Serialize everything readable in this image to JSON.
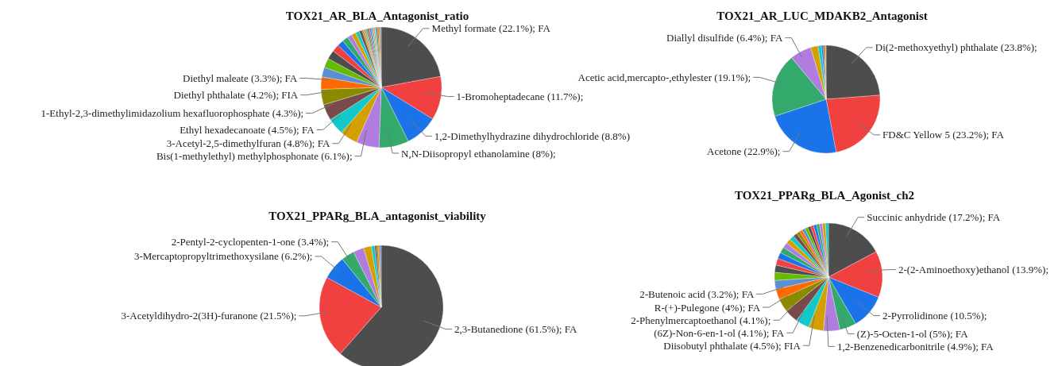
{
  "chart_data": [
    {
      "type": "pie",
      "title": "TOX21_AR_BLA_Antagonist_ratio",
      "categories": [
        "Methyl formate",
        "1-Bromoheptadecane",
        "1,2-Dimethylhydrazine dihydrochloride",
        "N,N-Diisopropyl ethanolamine",
        "Bis(1-methylethyl) methylphosphonate",
        "3-Acetyl-2,5-dimethylfuran",
        "Ethyl hexadecanoate",
        "1-Ethyl-2,3-dimethylimidazolium hexafluorophosphate",
        "Diethyl phthalate",
        "Diethyl maleate",
        null,
        null,
        null,
        null,
        null,
        null,
        null,
        null,
        null,
        null,
        null,
        null,
        null,
        null,
        null,
        null,
        null,
        null,
        null,
        null,
        null,
        null,
        null,
        null,
        null
      ],
      "values": [
        22.1,
        11.7,
        8.8,
        8,
        6.1,
        4.8,
        4.5,
        4.3,
        4.2,
        3.3,
        2.6,
        2.5,
        2.4,
        2,
        1.7,
        1.6,
        1.2,
        1.2,
        1,
        0.8,
        0.35,
        0.35,
        0.35,
        0.35,
        0.35,
        0.35,
        0.35,
        0.35,
        0.35,
        0.35,
        0.35,
        0.35,
        0.35,
        0.35,
        0.3
      ],
      "value_labels": [
        "(22.1%); FA",
        "(11.7%);",
        "(8.8%)",
        "(8%);",
        "(6.1%);",
        "(4.8%); FA",
        "(4.5%); FA",
        "(4.3%);",
        "(4.2%); FIA",
        "(3.3%); FA",
        null,
        null,
        null,
        null,
        null,
        null,
        null,
        null,
        null,
        null,
        null,
        null,
        null,
        null,
        null,
        null,
        null,
        null,
        null,
        null,
        null,
        null,
        null,
        null,
        null
      ],
      "colors": [
        "#4d4d4d",
        "#f04040",
        "#1a73e8",
        "#33a96b",
        "#b07ce0",
        "#d4a000",
        "#12c8c8",
        "#7a4a4a",
        "#8a8a00",
        "#ff6a00",
        "#5b8fd4",
        "#66bb00",
        "#4d4d4d",
        "#f04040",
        "#1a73e8",
        "#33a96b",
        "#b07ce0",
        "#d4a000",
        "#12c8c8",
        "#7a4a4a",
        "#8a8a00",
        "#ff6a00",
        "#5b8fd4",
        "#66bb00",
        "#4d4d4d",
        "#f04040",
        "#1a73e8",
        "#33a96b",
        "#b07ce0",
        "#d4a000",
        "#12c8c8",
        "#7a4a4a",
        "#8a8a00",
        "#ff6a00",
        "#5b8fd4"
      ]
    },
    {
      "type": "pie",
      "title": "TOX21_AR_LUC_MDAKB2_Antagonist",
      "categories": [
        "Di(2-methoxyethyl) phthalate",
        "FD&C Yellow 5",
        "Acetone",
        "Acetic acid,mercapto-,ethylester",
        "Diallyl disulfide",
        null,
        null,
        null,
        null,
        null,
        null
      ],
      "values": [
        23.8,
        23.2,
        22.9,
        19.1,
        6.4,
        2.2,
        1,
        0.5,
        0.4,
        0.3,
        0.2
      ],
      "value_labels": [
        "(23.8%);",
        "(23.2%); FA",
        "(22.9%);",
        "(19.1%);",
        "(6.4%); FA",
        null,
        null,
        null,
        null,
        null,
        null
      ],
      "colors": [
        "#4d4d4d",
        "#f04040",
        "#1a73e8",
        "#33a96b",
        "#b07ce0",
        "#d4a000",
        "#12c8c8",
        "#1a73e8",
        "#7a4a4a",
        "#8a8a00",
        "#ff6a00"
      ]
    },
    {
      "type": "pie",
      "title": "TOX21_PPARg_BLA_antagonist_viability",
      "categories": [
        "2,3-Butanedione",
        "3-Acetyldihydro-2(3H)-furanone",
        "3-Mercaptopropyltrimethoxysilane",
        "2-Pentyl-2-cyclopenten-1-one",
        null,
        null,
        null,
        null,
        null,
        null,
        null
      ],
      "values": [
        61.5,
        21.5,
        6.2,
        3.4,
        2.8,
        2,
        0.9,
        0.5,
        0.4,
        0.4,
        0.4
      ],
      "value_labels": [
        "(61.5%); FA",
        "(21.5%);",
        "(6.2%);",
        "(3.4%);",
        null,
        null,
        null,
        null,
        null,
        null,
        null
      ],
      "colors": [
        "#4d4d4d",
        "#f04040",
        "#1a73e8",
        "#33a96b",
        "#b07ce0",
        "#d4a000",
        "#12c8c8",
        "#7a4a4a",
        "#8a8a00",
        "#ff6a00",
        "#5b8fd4"
      ]
    },
    {
      "type": "pie",
      "title": "TOX21_PPARg_BLA_Agonist_ch2",
      "categories": [
        "Succinic anhydride",
        "2-(2-Aminoethoxy)ethanol",
        "2-Pyrrolidinone",
        "(Z)-5-Octen-1-ol",
        "1,2-Benzenedicarbonitrile",
        "Diisobutyl phthalate",
        "(6Z)-Non-6-en-1-ol",
        "2-Phenylmercaptoethanol",
        "R-(+)-Pulegone",
        "2-Butenoic acid",
        null,
        null,
        null,
        null,
        null,
        null,
        null,
        null,
        null,
        null,
        null,
        null,
        null,
        null,
        null,
        null,
        null,
        null,
        null,
        null,
        null
      ],
      "values": [
        17.2,
        13.9,
        10.5,
        5,
        4.9,
        4.5,
        4.1,
        4.1,
        4,
        3.2,
        2.6,
        2.4,
        2.2,
        2,
        1.9,
        1.8,
        1.6,
        1.5,
        1.4,
        1.2,
        1,
        0.9,
        0.9,
        0.9,
        0.9,
        0.9,
        0.9,
        0.9,
        0.9,
        0.9,
        0.9
      ],
      "value_labels": [
        "(17.2%); FA",
        "(13.9%);",
        "(10.5%);",
        "(5%); FA",
        "(4.9%); FA",
        "(4.5%); FIA",
        "(4.1%); FA",
        "(4.1%);",
        "(4%); FA",
        "(3.2%); FA",
        null,
        null,
        null,
        null,
        null,
        null,
        null,
        null,
        null,
        null,
        null,
        null,
        null,
        null,
        null,
        null,
        null,
        null,
        null,
        null,
        null
      ],
      "colors": [
        "#4d4d4d",
        "#f04040",
        "#1a73e8",
        "#33a96b",
        "#b07ce0",
        "#d4a000",
        "#12c8c8",
        "#7a4a4a",
        "#8a8a00",
        "#ff6a00",
        "#5b8fd4",
        "#66bb00",
        "#4d4d4d",
        "#f04040",
        "#1a73e8",
        "#33a96b",
        "#b07ce0",
        "#d4a000",
        "#12c8c8",
        "#7a4a4a",
        "#8a8a00",
        "#ff6a00",
        "#5b8fd4",
        "#66bb00",
        "#4d4d4d",
        "#f04040",
        "#1a73e8",
        "#33a96b",
        "#b07ce0",
        "#d4a000",
        "#12c8c8"
      ]
    }
  ]
}
